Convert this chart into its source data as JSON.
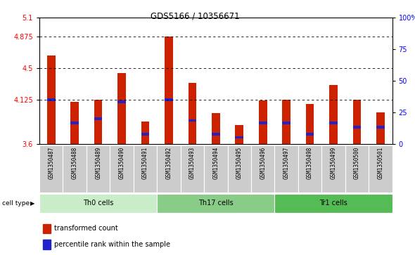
{
  "title": "GDS5166 / 10356671",
  "samples": [
    "GSM1350487",
    "GSM1350488",
    "GSM1350489",
    "GSM1350490",
    "GSM1350491",
    "GSM1350492",
    "GSM1350493",
    "GSM1350494",
    "GSM1350495",
    "GSM1350496",
    "GSM1350497",
    "GSM1350498",
    "GSM1350499",
    "GSM1350500",
    "GSM1350501"
  ],
  "red_values": [
    4.65,
    4.1,
    4.125,
    4.44,
    3.87,
    4.875,
    4.33,
    3.97,
    3.83,
    4.12,
    4.125,
    4.08,
    4.3,
    4.125,
    3.98
  ],
  "blue_values": [
    4.125,
    3.85,
    3.9,
    4.1,
    3.72,
    4.125,
    3.88,
    3.72,
    3.68,
    3.85,
    3.85,
    3.72,
    3.85,
    3.8,
    3.8
  ],
  "y_min": 3.6,
  "y_max": 5.1,
  "y_ticks_red": [
    3.6,
    4.125,
    4.5,
    4.875,
    5.1
  ],
  "y_ticks_red_labels": [
    "3.6",
    "4.125",
    "4.5",
    "4.875",
    "5.1"
  ],
  "y_ticks_blue": [
    0,
    25,
    50,
    75,
    100
  ],
  "y_ticks_blue_labels": [
    "0",
    "25",
    "50",
    "75",
    "100%"
  ],
  "dotted_lines": [
    4.875,
    4.5,
    4.125
  ],
  "cell_groups": [
    {
      "label": "Th0 cells",
      "start": 0,
      "end": 5,
      "color": "#c8edc8"
    },
    {
      "label": "Th17 cells",
      "start": 5,
      "end": 10,
      "color": "#88cc88"
    },
    {
      "label": "Tr1 cells",
      "start": 10,
      "end": 15,
      "color": "#55bb55"
    }
  ],
  "legend": [
    {
      "label": "transformed count",
      "color": "#cc2200"
    },
    {
      "label": "percentile rank within the sample",
      "color": "#2222cc"
    }
  ],
  "bar_color": "#cc2200",
  "blue_color": "#2222cc",
  "bar_width": 0.35,
  "bg_color": "#cccccc"
}
